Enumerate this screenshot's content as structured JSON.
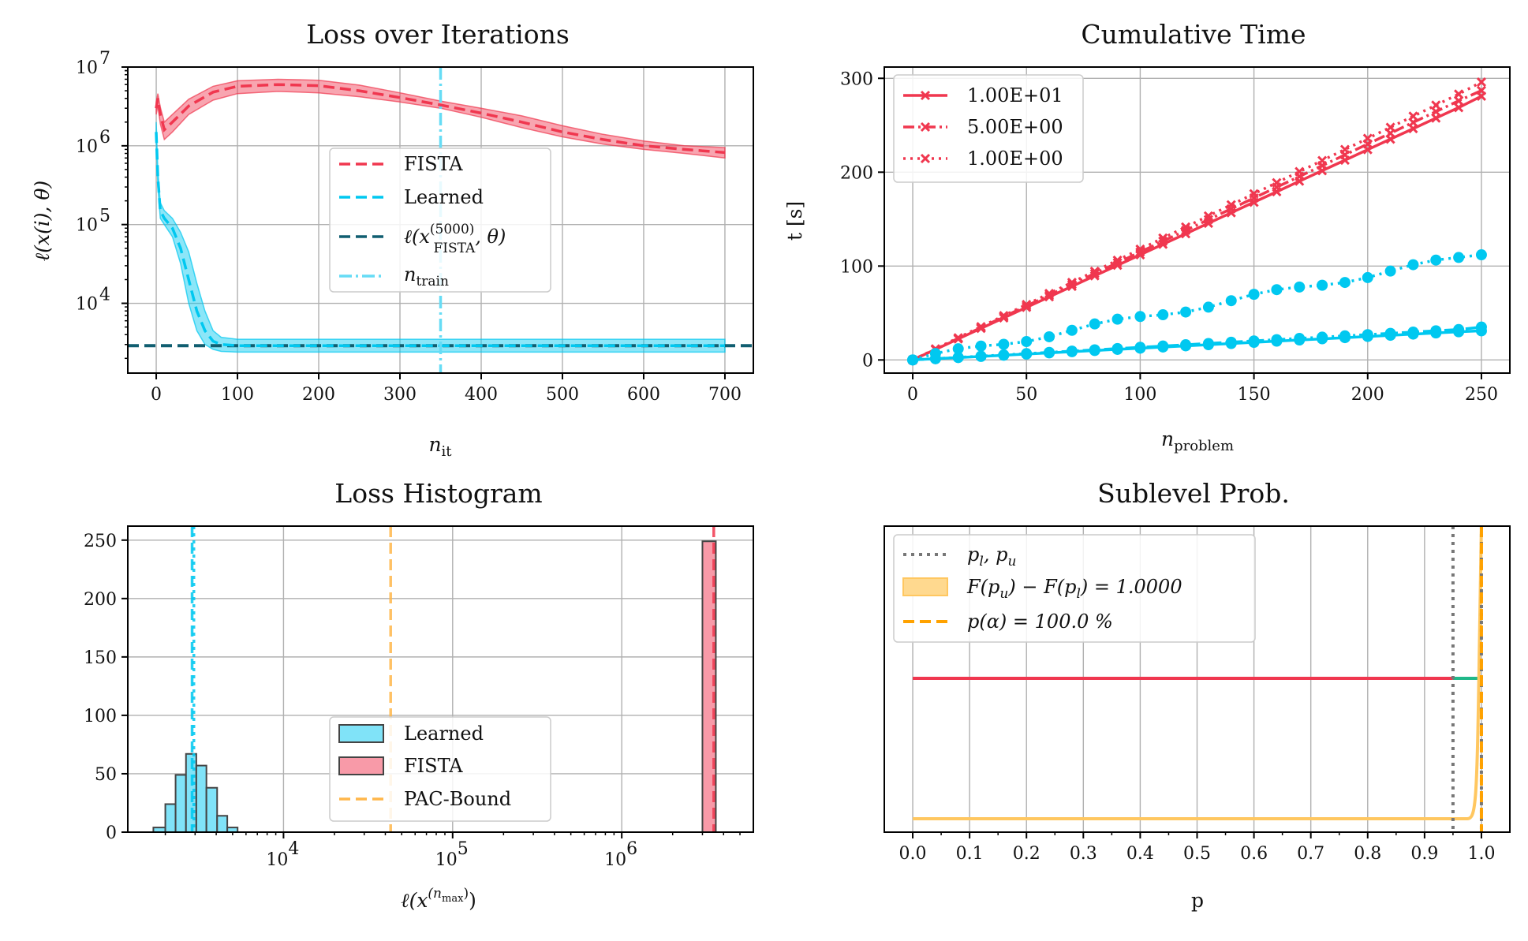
{
  "colors": {
    "fista": "#f0374f",
    "learned": "#00c8f0",
    "ref": "#105e70",
    "ntrain": "#66dcf5",
    "pac": "#ffb64a",
    "gray": "#777777",
    "orange": "#ffa200",
    "green": "#20b889"
  },
  "chart_data": [
    {
      "type": "line",
      "title": "Loss over Iterations",
      "xlabel": "n",
      "xlabel_sub": "it",
      "ylabel": "ℓ(x(i), θ)",
      "y_scale": "log",
      "xlim": [
        -35,
        735
      ],
      "ylim": [
        1300,
        10000000
      ],
      "x_ticks": [
        "0",
        "100",
        "200",
        "300",
        "400",
        "500",
        "600",
        "700"
      ],
      "y_ticks": [
        "10",
        "10",
        "10",
        "10"
      ],
      "y_tick_exponents": [
        "4",
        "5",
        "6",
        "7"
      ],
      "legend": {
        "position": "center-right",
        "entries": [
          {
            "label": "FISTA"
          },
          {
            "label": "Learned"
          },
          {
            "label": "ℓ(x",
            "sup": "(5000)",
            "sub": "FISTA",
            "tail": ", θ)"
          },
          {
            "label": "n",
            "sub": "train"
          }
        ]
      },
      "series": [
        {
          "name": "FISTA",
          "x": [
            0,
            2,
            5,
            10,
            20,
            40,
            70,
            100,
            150,
            200,
            250,
            300,
            350,
            400,
            450,
            500,
            550,
            600,
            650,
            700
          ],
          "y": [
            3000000,
            4000000,
            2500000,
            1600000,
            2000000,
            3200000,
            4800000,
            5700000,
            6000000,
            5800000,
            5000000,
            4100000,
            3300000,
            2600000,
            2000000,
            1500000,
            1200000,
            1000000,
            900000,
            820000
          ],
          "band_low": [
            2500000,
            3200000,
            1900000,
            1200000,
            1500000,
            2500000,
            3800000,
            4600000,
            4900000,
            4700000,
            4200000,
            3600000,
            3000000,
            2300000,
            1700000,
            1300000,
            1050000,
            900000,
            800000,
            700000
          ],
          "band_high": [
            3600000,
            4600000,
            3100000,
            2000000,
            2500000,
            3900000,
            5700000,
            6700000,
            7000000,
            6800000,
            5900000,
            4700000,
            3700000,
            3000000,
            2400000,
            1800000,
            1400000,
            1150000,
            1000000,
            950000
          ]
        },
        {
          "name": "Learned",
          "x": [
            0,
            2,
            5,
            10,
            20,
            30,
            40,
            50,
            60,
            70,
            80,
            100,
            150,
            200,
            300,
            400,
            500,
            600,
            700
          ],
          "y": [
            1500000,
            400000,
            150000,
            120000,
            90000,
            50000,
            20000,
            8000,
            4500,
            3300,
            3000,
            2900,
            2900,
            2900,
            2900,
            2900,
            2900,
            2900,
            2900
          ],
          "band_low": [
            1200000,
            300000,
            120000,
            100000,
            70000,
            32000,
            10000,
            4500,
            3000,
            2600,
            2450,
            2400,
            2400,
            2400,
            2400,
            2400,
            2400,
            2400,
            2400
          ],
          "band_high": [
            2000000,
            500000,
            190000,
            150000,
            120000,
            80000,
            45000,
            18000,
            8000,
            4500,
            3700,
            3500,
            3500,
            3500,
            3500,
            3500,
            3500,
            3500,
            3500
          ]
        },
        {
          "name": "ref",
          "hline": 2900
        },
        {
          "name": "ntrain",
          "vline": 350
        }
      ]
    },
    {
      "type": "line",
      "title": "Cumulative Time",
      "xlabel": "n",
      "xlabel_sub": "problem",
      "ylabel": "t [s]",
      "xlim": [
        -12.5,
        262.5
      ],
      "ylim": [
        -14,
        312
      ],
      "x_ticks": [
        "0",
        "50",
        "100",
        "150",
        "200",
        "250"
      ],
      "y_ticks": [
        "0",
        "100",
        "200",
        "300"
      ],
      "legend": {
        "position": "top-left",
        "entries": [
          {
            "label": "1.00E+01"
          },
          {
            "label": "5.00E+00"
          },
          {
            "label": "1.00E+00"
          }
        ]
      },
      "series": [
        {
          "name": "1.00E+01",
          "style": "solid",
          "color": "fista",
          "x_step": 10,
          "slope": 1.12,
          "end": 281
        },
        {
          "name": "5.00E+00",
          "style": "dashdot",
          "color": "fista",
          "x_step": 10,
          "slope": 1.15,
          "end": 287
        },
        {
          "name": "1.00E+00",
          "style": "dotted",
          "color": "fista",
          "x_step": 10,
          "slope": 1.18,
          "end": 296
        },
        {
          "name": "learned-1",
          "style": "solid",
          "color": "learned",
          "x_step": 10,
          "slope": 0.125,
          "end": 31
        },
        {
          "name": "learned-2",
          "style": "dashdot",
          "color": "learned",
          "x_step": 10,
          "slope": 0.135,
          "end": 35
        },
        {
          "name": "learned-3",
          "style": "dotted",
          "color": "learned",
          "x_step": 10,
          "slope": 0.45,
          "end": 112
        }
      ]
    },
    {
      "type": "bar",
      "title": "Loss Histogram",
      "xlabel": "ℓ(x",
      "xlabel_sup": "(n",
      "xlabel_supsub": "max",
      "xlabel_tail": ")",
      "x_scale": "log",
      "xlim": [
        1200,
        6000000
      ],
      "ylim": [
        0,
        262
      ],
      "x_ticks": [
        "10",
        "10",
        "10"
      ],
      "x_tick_exponents": [
        "4",
        "5",
        "6"
      ],
      "y_ticks": [
        "0",
        "50",
        "100",
        "150",
        "200",
        "250"
      ],
      "legend": {
        "position": "lower-center",
        "entries": [
          {
            "label": "Learned"
          },
          {
            "label": "FISTA"
          },
          {
            "label": "PAC-Bound"
          }
        ]
      },
      "learned_bins": [
        {
          "lo": 1700,
          "hi": 2000,
          "count": 4
        },
        {
          "lo": 2000,
          "hi": 2300,
          "count": 24
        },
        {
          "lo": 2300,
          "hi": 2650,
          "count": 49
        },
        {
          "lo": 2650,
          "hi": 3050,
          "count": 67
        },
        {
          "lo": 3050,
          "hi": 3500,
          "count": 57
        },
        {
          "lo": 3500,
          "hi": 4050,
          "count": 38
        },
        {
          "lo": 4050,
          "hi": 4650,
          "count": 14
        },
        {
          "lo": 4650,
          "hi": 5350,
          "count": 4
        }
      ],
      "fista_bins": [
        {
          "lo": 3000000,
          "hi": 3600000,
          "count": 249
        }
      ],
      "vlines": [
        {
          "name": "learned-mean",
          "x": 2880,
          "color": "learned"
        },
        {
          "name": "learned-bound",
          "x": 2950,
          "color": "learned"
        },
        {
          "name": "PAC-Bound",
          "x": 43000,
          "color": "pac"
        },
        {
          "name": "fista-line",
          "x": 3500000,
          "color": "fista"
        }
      ]
    },
    {
      "type": "line",
      "title": "Sublevel Prob.",
      "xlabel": "p",
      "xlim": [
        -0.05,
        1.05
      ],
      "x_ticks": [
        "0.0",
        "0.1",
        "0.2",
        "0.3",
        "0.4",
        "0.5",
        "0.6",
        "0.7",
        "0.8",
        "0.9",
        "1.0"
      ],
      "legend": {
        "position": "top-left",
        "entries": [
          {
            "label": "p",
            "sub": "l",
            "tail": ", p",
            "sub2": "u"
          },
          {
            "label": "F(p",
            "sub": "u",
            "tail": ") − F(p",
            "sub2": "l",
            "tail2": ") = 1.0000"
          },
          {
            "label": "p(α) = 100.0 %"
          }
        ]
      },
      "pl": 0.95,
      "pu": 1.0,
      "alpha_line": 1.0,
      "red_segment": [
        0.0,
        0.95
      ],
      "green_segment": [
        0.95,
        1.0
      ],
      "cdf_rise_start": 0.975
    }
  ]
}
